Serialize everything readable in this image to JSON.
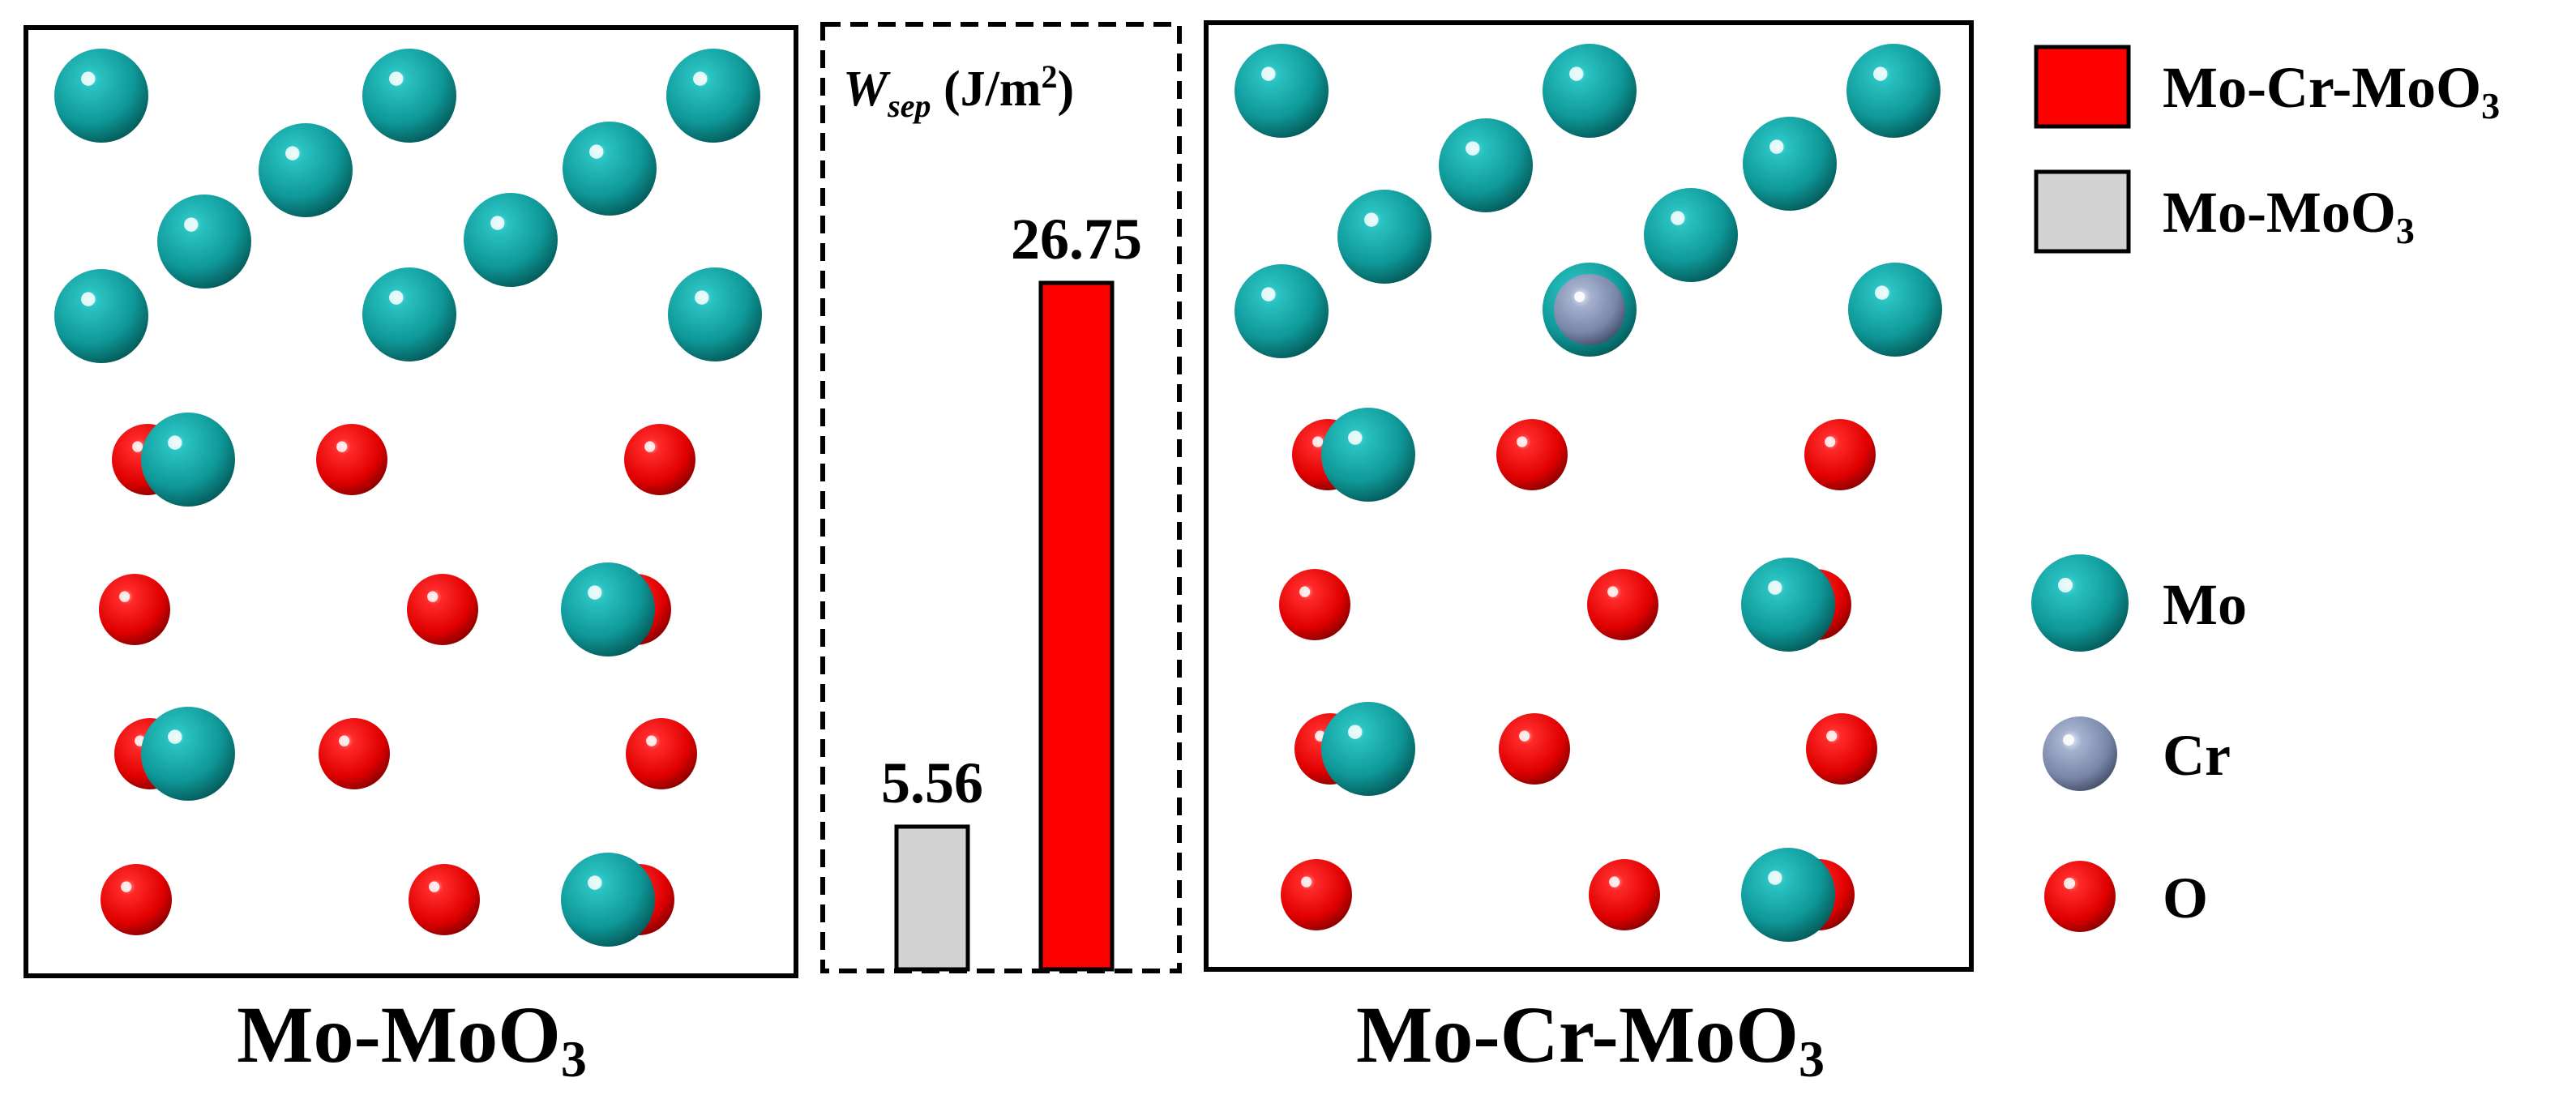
{
  "panels": {
    "left": {
      "title_main": "Mo-MoO",
      "title_sub": "3"
    },
    "right": {
      "title_main": "Mo-Cr-MoO",
      "title_sub": "3"
    }
  },
  "chart_data": {
    "type": "bar",
    "title_var": "W",
    "title_var_sub": "sep",
    "title_unit_main": " (J/m",
    "title_unit_sup": "2",
    "title_unit_end": ")",
    "categories": [
      "Mo-MoO3",
      "Mo-Cr-MoO3"
    ],
    "values": [
      5.56,
      26.75
    ],
    "value_labels": [
      "5.56",
      "26.75"
    ],
    "colors": [
      "#d3d3d3",
      "#ff0000"
    ],
    "ylim": [
      0,
      30
    ],
    "xlabel": "",
    "ylabel": ""
  },
  "legend": {
    "bars": [
      {
        "main": "Mo-Cr-MoO",
        "sub": "3",
        "color": "#ff0000"
      },
      {
        "main": "Mo-MoO",
        "sub": "3",
        "color": "#d3d3d3"
      }
    ],
    "atoms": [
      {
        "label": "Mo",
        "color": "#17a0a0"
      },
      {
        "label": "Cr",
        "color": "#8090b0"
      },
      {
        "label": "O",
        "color": "#ee1111"
      }
    ]
  }
}
